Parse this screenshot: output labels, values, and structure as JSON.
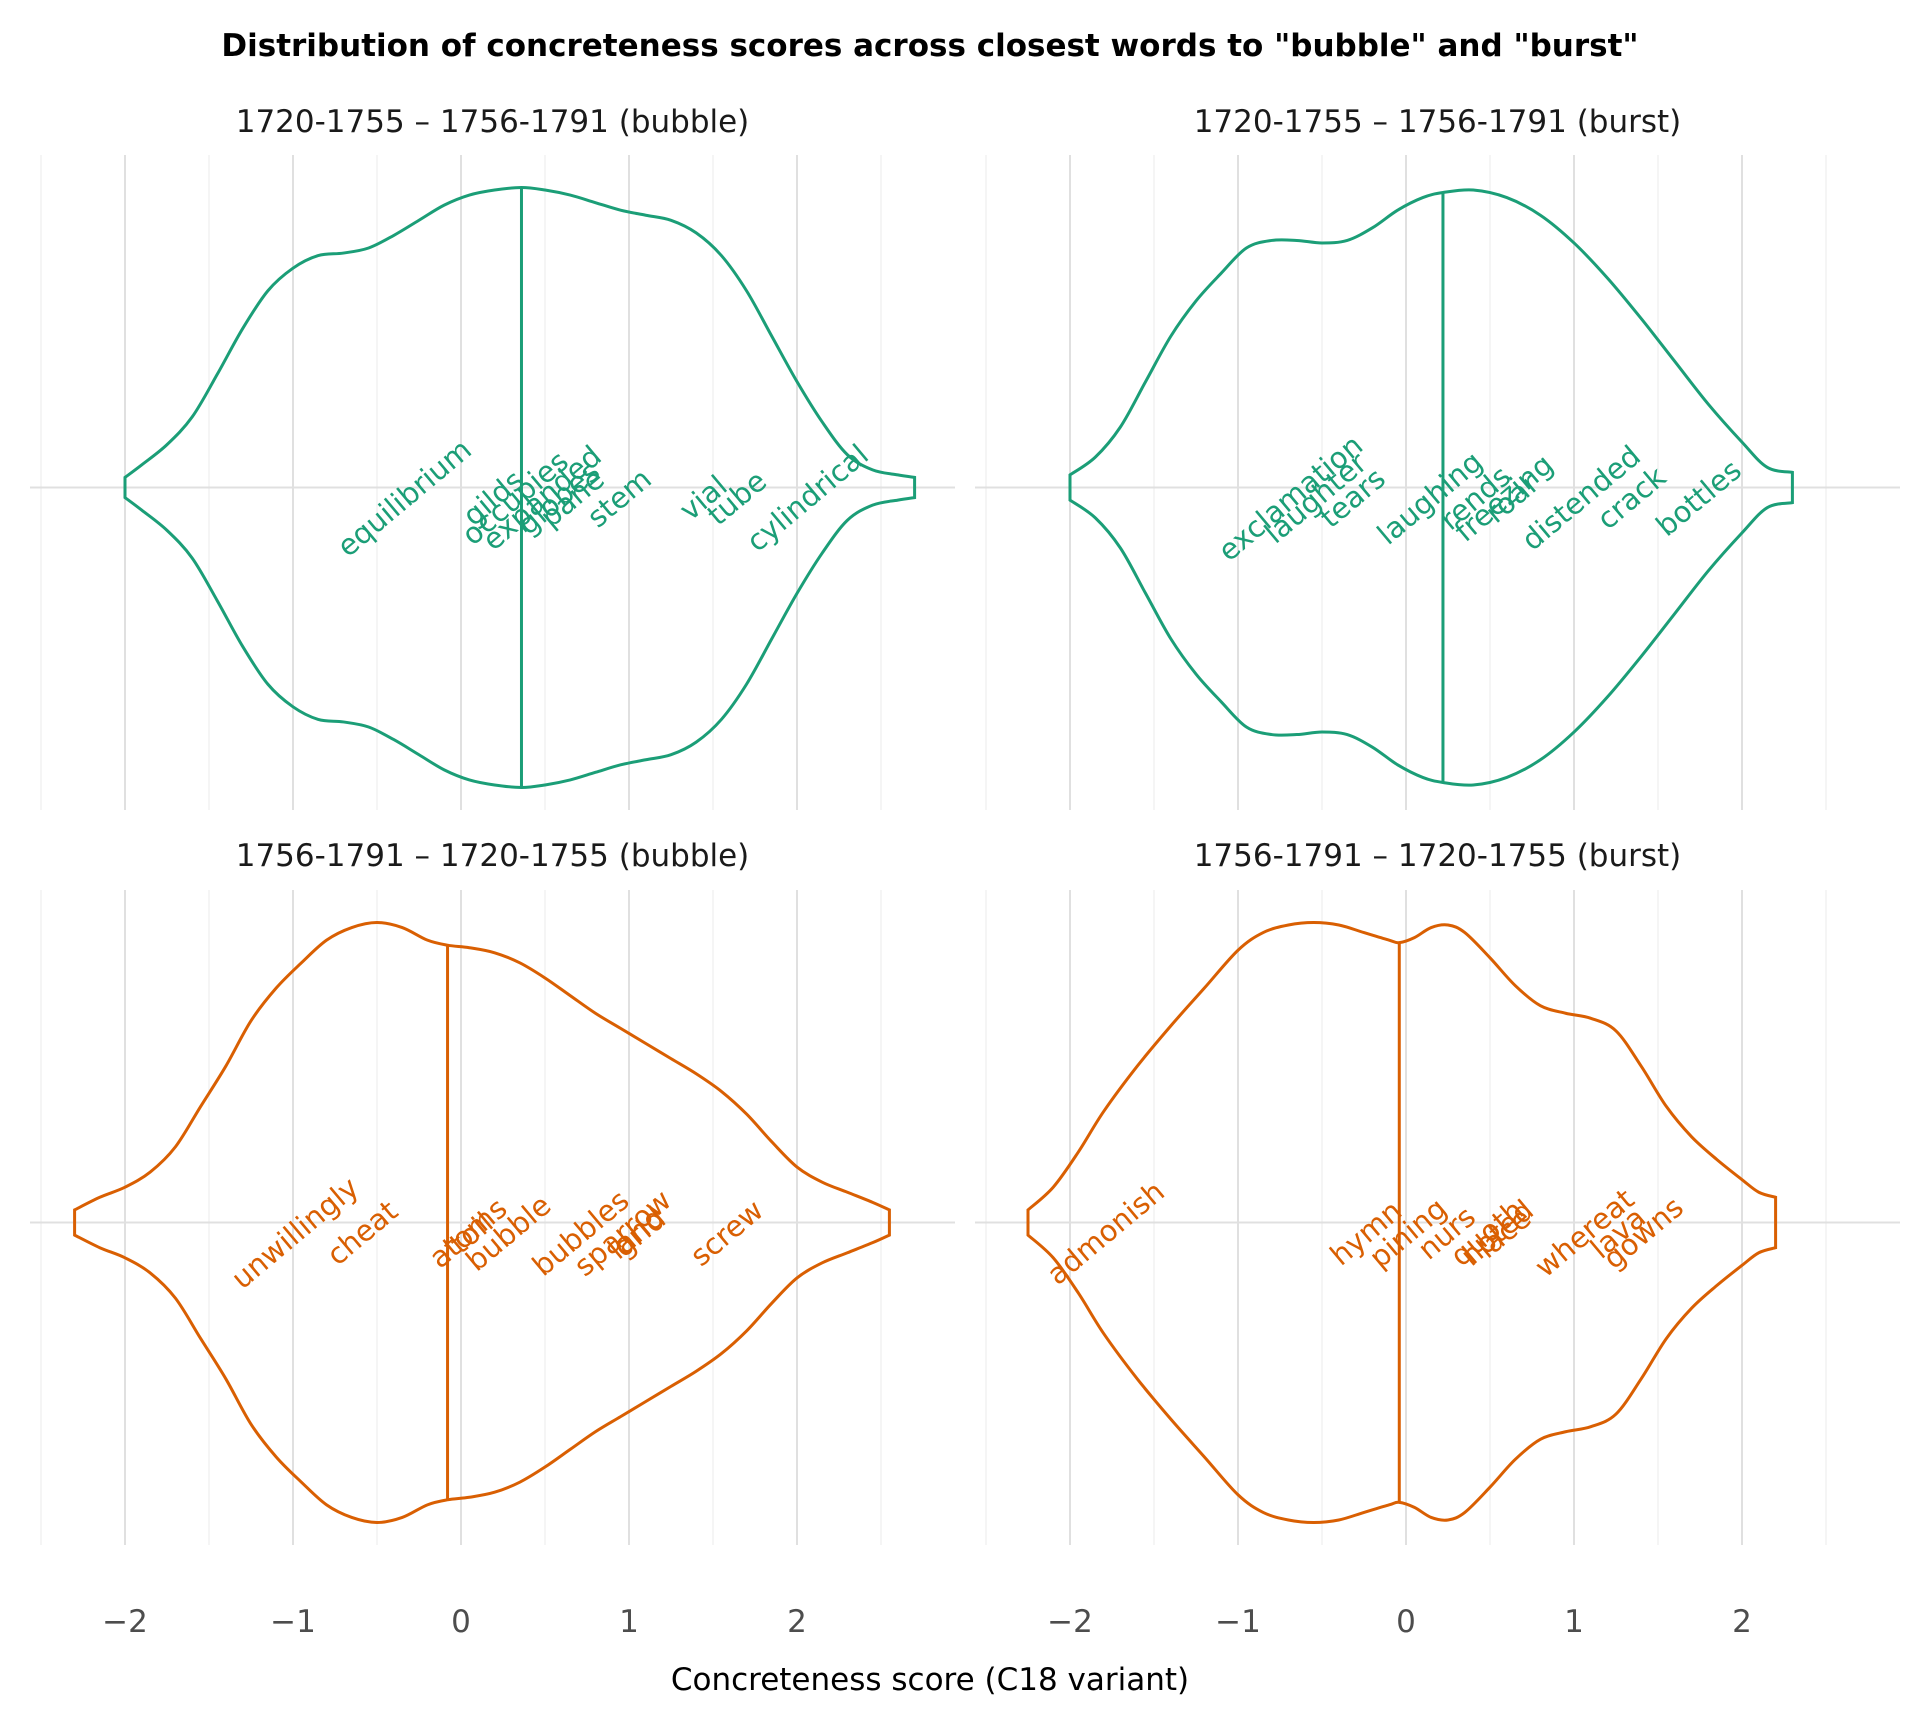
{
  "figure": {
    "title": "Distribution of concreteness scores across closest words to \"bubble\" and \"burst\"",
    "xlabel": "Concreteness score (C18 variant)"
  },
  "chart_data": [
    {
      "type": "violin",
      "title": "1720-1755 – 1756-1791 (bubble)",
      "color": "#1b9e77",
      "xlim": [
        -2.5,
        2.95
      ],
      "xticks": [
        -2,
        -1,
        0,
        1,
        2
      ],
      "xtick_labels": [
        "−2",
        "−1",
        "0",
        "1",
        "2"
      ],
      "median": 0.36,
      "density": [
        [
          -2.0,
          0.04
        ],
        [
          -1.9,
          0.09
        ],
        [
          -1.75,
          0.17
        ],
        [
          -1.6,
          0.28
        ],
        [
          -1.45,
          0.45
        ],
        [
          -1.3,
          0.63
        ],
        [
          -1.15,
          0.78
        ],
        [
          -1.0,
          0.87
        ],
        [
          -0.85,
          0.92
        ],
        [
          -0.7,
          0.93
        ],
        [
          -0.55,
          0.95
        ],
        [
          -0.4,
          1.0
        ],
        [
          -0.25,
          1.06
        ],
        [
          -0.1,
          1.12
        ],
        [
          0.05,
          1.16
        ],
        [
          0.2,
          1.18
        ],
        [
          0.36,
          1.19
        ],
        [
          0.5,
          1.18
        ],
        [
          0.65,
          1.16
        ],
        [
          0.8,
          1.13
        ],
        [
          0.95,
          1.1
        ],
        [
          1.1,
          1.08
        ],
        [
          1.25,
          1.06
        ],
        [
          1.4,
          1.01
        ],
        [
          1.55,
          0.92
        ],
        [
          1.7,
          0.78
        ],
        [
          1.85,
          0.6
        ],
        [
          2.0,
          0.42
        ],
        [
          2.15,
          0.26
        ],
        [
          2.3,
          0.13
        ],
        [
          2.45,
          0.07
        ],
        [
          2.6,
          0.05
        ],
        [
          2.7,
          0.04
        ]
      ],
      "words": [
        {
          "text": "equilibrium",
          "x": -0.3
        },
        {
          "text": "gilds",
          "x": 0.23
        },
        {
          "text": "occupies",
          "x": 0.36
        },
        {
          "text": "expanded",
          "x": 0.52
        },
        {
          "text": "globes",
          "x": 0.62
        },
        {
          "text": "pane",
          "x": 0.7
        },
        {
          "text": "stem",
          "x": 0.98
        },
        {
          "text": "vial",
          "x": 1.48
        },
        {
          "text": "tube",
          "x": 1.68
        },
        {
          "text": "cylindrical",
          "x": 2.1
        }
      ]
    },
    {
      "type": "violin",
      "title": "1720-1755 – 1756-1791 (burst)",
      "color": "#1b9e77",
      "xlim": [
        -2.5,
        2.95
      ],
      "xticks": [
        -2,
        -1,
        0,
        1,
        2
      ],
      "xtick_labels": [
        "−2",
        "−1",
        "0",
        "1",
        "2"
      ],
      "median": 0.22,
      "density": [
        [
          -2.0,
          0.05
        ],
        [
          -1.85,
          0.12
        ],
        [
          -1.7,
          0.24
        ],
        [
          -1.55,
          0.42
        ],
        [
          -1.4,
          0.6
        ],
        [
          -1.25,
          0.74
        ],
        [
          -1.1,
          0.85
        ],
        [
          -0.95,
          0.95
        ],
        [
          -0.8,
          0.98
        ],
        [
          -0.65,
          0.98
        ],
        [
          -0.5,
          0.97
        ],
        [
          -0.35,
          0.98
        ],
        [
          -0.2,
          1.03
        ],
        [
          -0.05,
          1.1
        ],
        [
          0.1,
          1.15
        ],
        [
          0.22,
          1.17
        ],
        [
          0.4,
          1.18
        ],
        [
          0.6,
          1.15
        ],
        [
          0.8,
          1.08
        ],
        [
          1.0,
          0.97
        ],
        [
          1.2,
          0.83
        ],
        [
          1.4,
          0.67
        ],
        [
          1.6,
          0.5
        ],
        [
          1.8,
          0.33
        ],
        [
          2.0,
          0.18
        ],
        [
          2.15,
          0.08
        ],
        [
          2.3,
          0.06
        ]
      ],
      "words": [
        {
          "text": "exclamation",
          "x": -0.65
        },
        {
          "text": "laughter",
          "x": -0.5
        },
        {
          "text": "tears",
          "x": -0.28
        },
        {
          "text": "laughing",
          "x": 0.18
        },
        {
          "text": "rends",
          "x": 0.45
        },
        {
          "text": "freezing",
          "x": 0.62
        },
        {
          "text": "roar",
          "x": 0.67
        },
        {
          "text": "distended",
          "x": 1.08
        },
        {
          "text": "crack",
          "x": 1.38
        },
        {
          "text": "bottles",
          "x": 1.78
        }
      ]
    },
    {
      "type": "violin",
      "title": "1756-1791 – 1720-1755 (bubble)",
      "color": "#d95f02",
      "xlim": [
        -2.5,
        2.95
      ],
      "xticks": [
        -2,
        -1,
        0,
        1,
        2
      ],
      "xtick_labels": [
        "−2",
        "−1",
        "0",
        "1",
        "2"
      ],
      "median": -0.08,
      "density": [
        [
          -2.3,
          0.05
        ],
        [
          -2.15,
          0.1
        ],
        [
          -2.0,
          0.14
        ],
        [
          -1.85,
          0.2
        ],
        [
          -1.7,
          0.3
        ],
        [
          -1.55,
          0.46
        ],
        [
          -1.4,
          0.62
        ],
        [
          -1.25,
          0.8
        ],
        [
          -1.1,
          0.93
        ],
        [
          -0.95,
          1.03
        ],
        [
          -0.8,
          1.12
        ],
        [
          -0.65,
          1.17
        ],
        [
          -0.5,
          1.19
        ],
        [
          -0.35,
          1.17
        ],
        [
          -0.2,
          1.12
        ],
        [
          -0.08,
          1.1
        ],
        [
          0.05,
          1.09
        ],
        [
          0.2,
          1.07
        ],
        [
          0.35,
          1.03
        ],
        [
          0.5,
          0.97
        ],
        [
          0.65,
          0.9
        ],
        [
          0.8,
          0.83
        ],
        [
          0.95,
          0.77
        ],
        [
          1.1,
          0.71
        ],
        [
          1.25,
          0.65
        ],
        [
          1.4,
          0.59
        ],
        [
          1.55,
          0.52
        ],
        [
          1.7,
          0.43
        ],
        [
          1.85,
          0.32
        ],
        [
          2.0,
          0.22
        ],
        [
          2.15,
          0.16
        ],
        [
          2.3,
          0.12
        ],
        [
          2.45,
          0.08
        ],
        [
          2.55,
          0.05
        ]
      ],
      "words": [
        {
          "text": "unwillingly",
          "x": -0.95
        },
        {
          "text": "cheat",
          "x": -0.55
        },
        {
          "text": "atoms",
          "x": 0.08
        },
        {
          "text": "toil",
          "x": 0.1
        },
        {
          "text": "bubble",
          "x": 0.32
        },
        {
          "text": "bubbles",
          "x": 0.75
        },
        {
          "text": "sparrow",
          "x": 1.0
        },
        {
          "text": "land",
          "x": 1.08
        },
        {
          "text": "grid",
          "x": 1.1
        },
        {
          "text": "screw",
          "x": 1.62
        }
      ]
    },
    {
      "type": "violin",
      "title": "1756-1791 – 1720-1755 (burst)",
      "color": "#d95f02",
      "xlim": [
        -2.5,
        2.95
      ],
      "xticks": [
        -2,
        -1,
        0,
        1,
        2
      ],
      "xtick_labels": [
        "−2",
        "−1",
        "0",
        "1",
        "2"
      ],
      "median": -0.04,
      "density": [
        [
          -2.25,
          0.05
        ],
        [
          -2.1,
          0.14
        ],
        [
          -1.95,
          0.28
        ],
        [
          -1.8,
          0.44
        ],
        [
          -1.6,
          0.62
        ],
        [
          -1.4,
          0.78
        ],
        [
          -1.2,
          0.93
        ],
        [
          -1.0,
          1.08
        ],
        [
          -0.85,
          1.15
        ],
        [
          -0.7,
          1.18
        ],
        [
          -0.55,
          1.19
        ],
        [
          -0.4,
          1.18
        ],
        [
          -0.25,
          1.15
        ],
        [
          -0.1,
          1.12
        ],
        [
          -0.04,
          1.11
        ],
        [
          0.05,
          1.13
        ],
        [
          0.15,
          1.17
        ],
        [
          0.25,
          1.18
        ],
        [
          0.35,
          1.15
        ],
        [
          0.5,
          1.05
        ],
        [
          0.65,
          0.94
        ],
        [
          0.8,
          0.86
        ],
        [
          0.95,
          0.83
        ],
        [
          1.1,
          0.81
        ],
        [
          1.25,
          0.76
        ],
        [
          1.4,
          0.62
        ],
        [
          1.55,
          0.46
        ],
        [
          1.7,
          0.34
        ],
        [
          1.85,
          0.25
        ],
        [
          2.0,
          0.17
        ],
        [
          2.1,
          0.12
        ],
        [
          2.2,
          0.1
        ]
      ],
      "words": [
        {
          "text": "admonish",
          "x": -1.75
        },
        {
          "text": "hymn",
          "x": -0.2
        },
        {
          "text": "pining",
          "x": 0.05
        },
        {
          "text": "nurs",
          "x": 0.28
        },
        {
          "text": "quoth",
          "x": 0.52
        },
        {
          "text": "noted",
          "x": 0.58
        },
        {
          "text": "lace",
          "x": 0.62
        },
        {
          "text": "whereat",
          "x": 1.1
        },
        {
          "text": "lava",
          "x": 1.3
        },
        {
          "text": "gowns",
          "x": 1.45
        }
      ]
    }
  ]
}
